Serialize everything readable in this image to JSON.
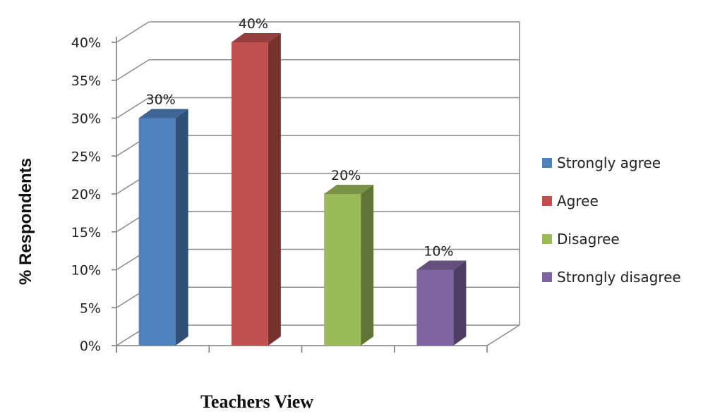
{
  "chart_data": {
    "type": "bar",
    "style": "3d-column",
    "title": "",
    "xlabel": "Teachers View",
    "ylabel": "% Respondents",
    "categories": [
      "Strongly agree",
      "Agree",
      "Disagree",
      "Strongly disagree"
    ],
    "values": [
      30,
      40,
      20,
      10
    ],
    "data_labels": [
      "30%",
      "40%",
      "20%",
      "10%"
    ],
    "ylim": [
      0,
      40
    ],
    "yticks": [
      "0%",
      "5%",
      "10%",
      "15%",
      "20%",
      "25%",
      "30%",
      "35%",
      "40%"
    ],
    "grid": true,
    "legend": {
      "position": "right",
      "entries": [
        "Strongly agree",
        "Agree",
        "Disagree",
        "Strongly disagree"
      ]
    },
    "colors": {
      "Strongly agree": "#4f81bd",
      "Agree": "#c0504d",
      "Disagree": "#9bbb59",
      "Strongly disagree": "#8064a2"
    }
  }
}
